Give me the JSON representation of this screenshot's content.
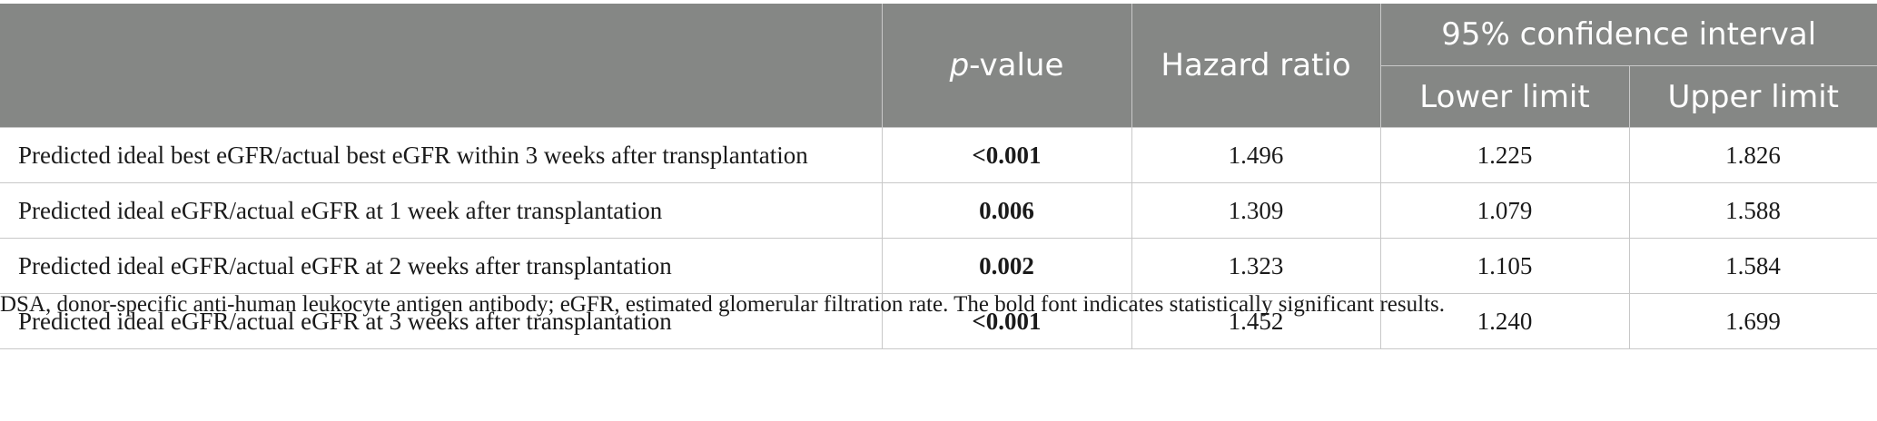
{
  "table": {
    "headers": {
      "blank": "",
      "p_prefix": "p",
      "p_suffix": "-value",
      "hazard": "Hazard ratio",
      "ci": "95% confidence interval",
      "lower": "Lower limit",
      "upper": "Upper limit"
    },
    "rows": [
      {
        "label": "Predicted ideal best eGFR/actual best eGFR within 3 weeks after transplantation",
        "p": "<0.001",
        "hr": "1.496",
        "lower": "1.225",
        "upper": "1.826"
      },
      {
        "label": "Predicted ideal eGFR/actual eGFR at 1 week after transplantation",
        "p": "0.006",
        "hr": "1.309",
        "lower": "1.079",
        "upper": "1.588"
      },
      {
        "label": "Predicted ideal eGFR/actual eGFR at 2 weeks after transplantation",
        "p": "0.002",
        "hr": "1.323",
        "lower": "1.105",
        "upper": "1.584"
      },
      {
        "label": "Predicted ideal eGFR/actual eGFR at 3 weeks after transplantation",
        "p": "<0.001",
        "hr": "1.452",
        "lower": "1.240",
        "upper": "1.699"
      }
    ]
  },
  "footnote": "DSA, donor-specific anti-human leukocyte antigen antibody; eGFR, estimated glomerular filtration rate. The bold font indicates statistically significant results."
}
